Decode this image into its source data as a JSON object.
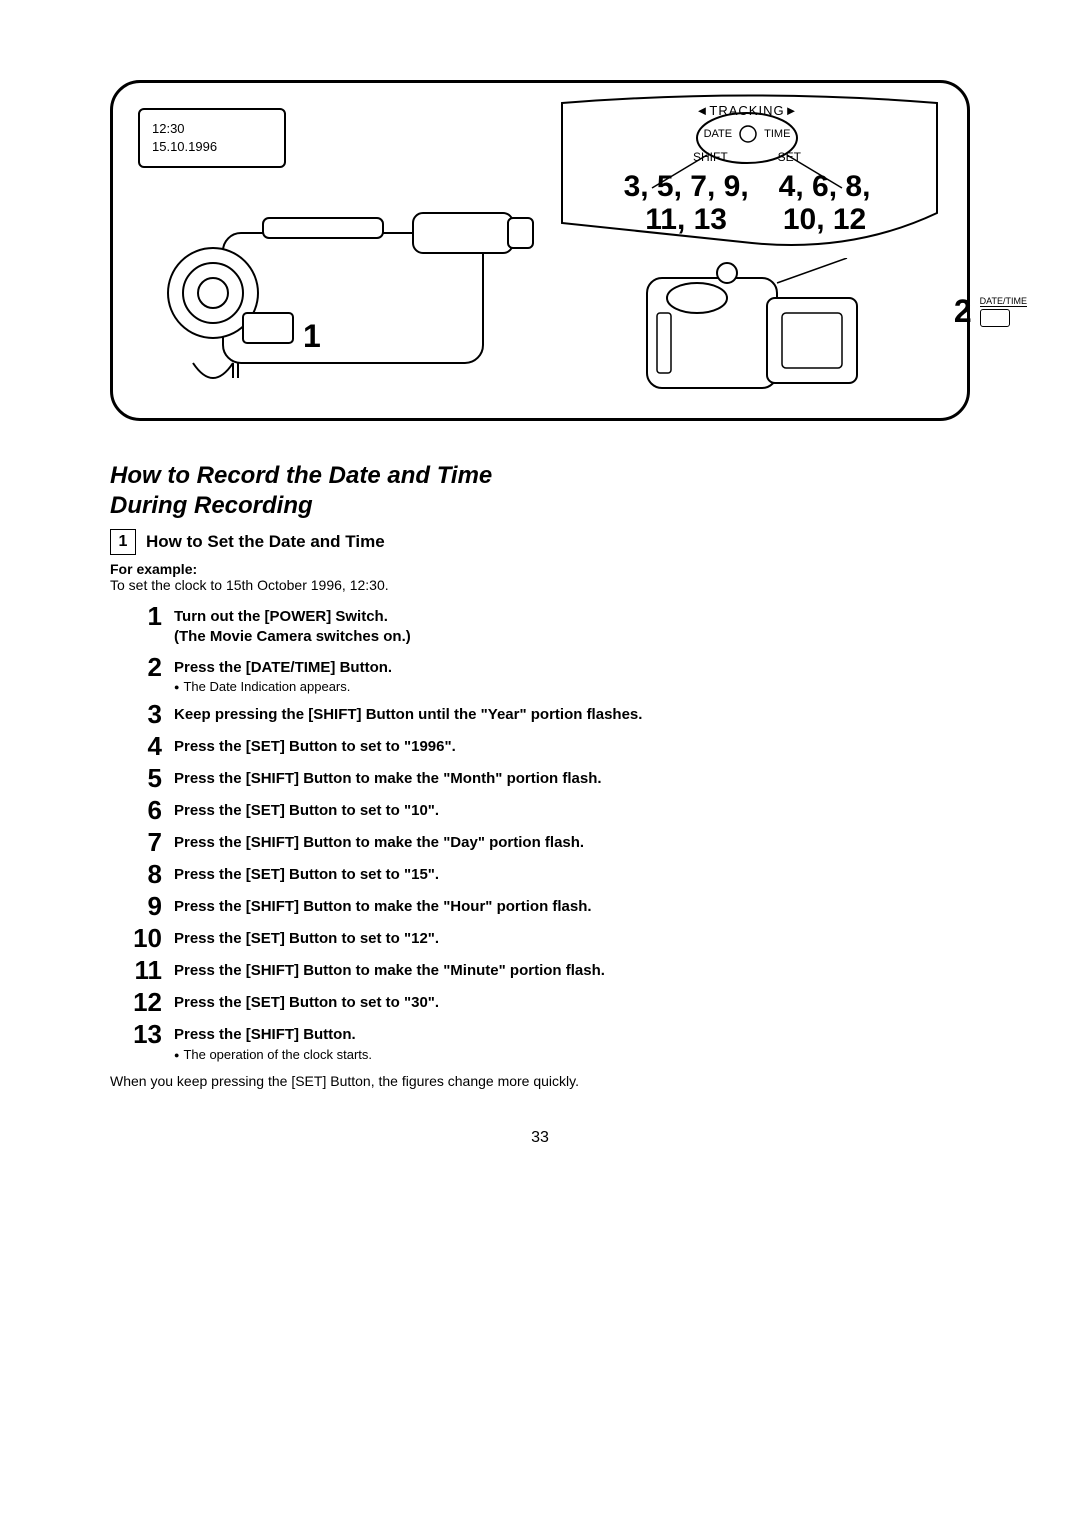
{
  "lcd": {
    "line1": "12:30",
    "line2": "15.10.1996"
  },
  "panel": {
    "tracking": "◄TRACKING►",
    "date": "DATE",
    "time": "TIME",
    "shift": "SHIFT",
    "set": "SET",
    "left_numbers_line1": "3, 5, 7, 9,",
    "left_numbers_line2": "11, 13",
    "right_numbers_line1": "4, 6, 8,",
    "right_numbers_line2": "10, 12",
    "step1_label": "1",
    "dt_num": "2",
    "dt_label": "DATE/TIME"
  },
  "section": {
    "title_line1": "How to Record the Date and Time",
    "title_line2": "During Recording",
    "box_num": "1",
    "subhead": "How to Set the Date and Time",
    "example_label": "For example:",
    "example_desc": "To set the clock to 15th October 1996, 12:30.",
    "footer": "When you keep pressing the [SET] Button, the figures change more quickly.",
    "page_number": "33"
  },
  "steps": [
    {
      "n": "1",
      "bold": "Turn out the [POWER] Switch.\n(The Movie Camera switches on.)"
    },
    {
      "n": "2",
      "bold": "Press the [DATE/TIME] Button.",
      "note": "The Date Indication appears."
    },
    {
      "n": "3",
      "bold": "Keep pressing the [SHIFT] Button until the \"Year\" portion flashes."
    },
    {
      "n": "4",
      "bold": "Press the [SET] Button to set to \"1996\"."
    },
    {
      "n": "5",
      "bold": "Press the [SHIFT] Button to make the \"Month\" portion flash."
    },
    {
      "n": "6",
      "bold": "Press the [SET] Button to set to \"10\"."
    },
    {
      "n": "7",
      "bold": "Press the [SHIFT] Button to make the \"Day\" portion flash."
    },
    {
      "n": "8",
      "bold": "Press the [SET] Button to set to \"15\"."
    },
    {
      "n": "9",
      "bold": "Press the [SHIFT] Button to make the \"Hour\" portion flash."
    },
    {
      "n": "10",
      "bold": "Press the [SET] Button to set to \"12\"."
    },
    {
      "n": "11",
      "bold": "Press the [SHIFT] Button to make the \"Minute\" portion flash."
    },
    {
      "n": "12",
      "bold": "Press the [SET] Button to set to \"30\"."
    },
    {
      "n": "13",
      "bold": "Press the [SHIFT] Button.",
      "note": "The operation of the clock starts."
    }
  ]
}
